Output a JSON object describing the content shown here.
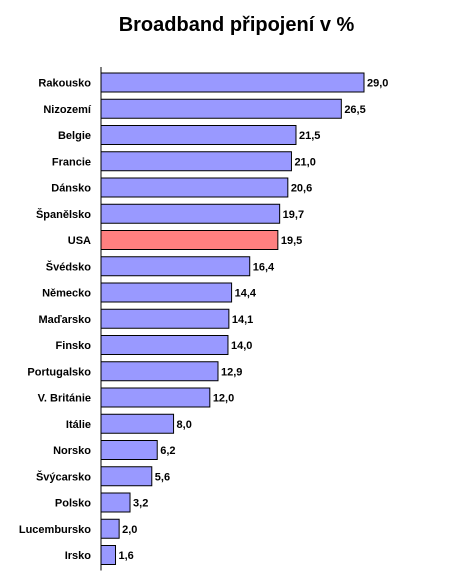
{
  "chart_data": {
    "type": "bar",
    "orientation": "horizontal",
    "title": "Broadband připojení v %",
    "categories": [
      "Rakousko",
      "Nizozemí",
      "Belgie",
      "Francie",
      "Dánsko",
      "Španělsko",
      "USA",
      "Švédsko",
      "Německo",
      "Maďarsko",
      "Finsko",
      "Portugalsko",
      "V. Británie",
      "Itálie",
      "Norsko",
      "Švýcarsko",
      "Polsko",
      "Lucembursko",
      "Irsko"
    ],
    "values": [
      29.0,
      26.5,
      21.5,
      21.0,
      20.6,
      19.7,
      19.5,
      16.4,
      14.4,
      14.1,
      14.0,
      12.9,
      12.0,
      8.0,
      6.2,
      5.6,
      3.2,
      2.0,
      1.6
    ],
    "value_labels": [
      "29,0",
      "26,5",
      "21,5",
      "21,0",
      "20,6",
      "19,7",
      "19,5",
      "16,4",
      "14,4",
      "14,1",
      "14,0",
      "12,9",
      "12,0",
      "8,0",
      "6,2",
      "5,6",
      "3,2",
      "2,0",
      "1,6"
    ],
    "highlight_category": "USA",
    "colors": {
      "bar": "#9999ff",
      "highlight": "#ff8080",
      "outline": "#000000"
    },
    "xlim": [
      0,
      29.0
    ],
    "xlabel": "",
    "ylabel": "",
    "grid": false,
    "legend": "none"
  }
}
